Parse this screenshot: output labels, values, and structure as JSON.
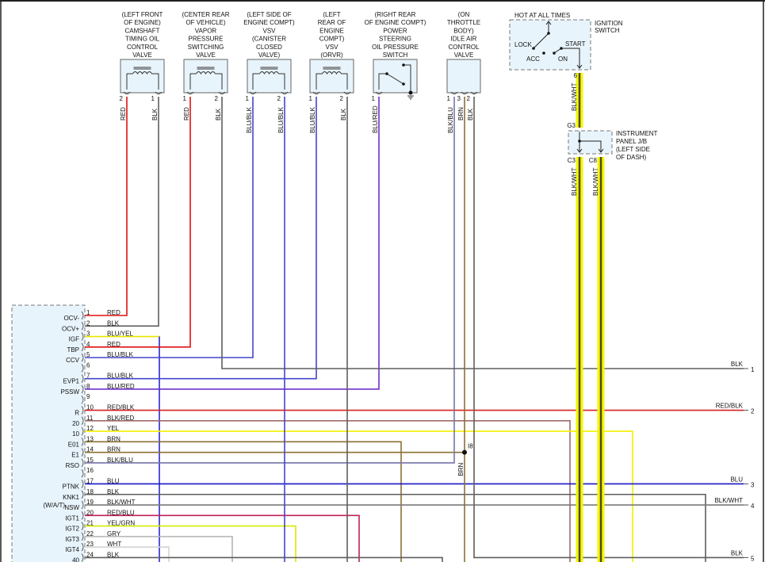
{
  "wire_colors": {
    "RED": "#e01010",
    "BLK": "#5e5e5e",
    "BLU/YEL": "#2a2ad0",
    "BLU/BLK": "#4444cc",
    "BLU/RED": "#7030c8",
    "RED/BLK": "#d82020",
    "BLK/RED": "#a06a6a",
    "YEL": "#f2f000",
    "BRN": "#8a7234",
    "BLK/BLU": "#7474a8",
    "BLU": "#1818c8",
    "BLK/WHT": "#7a7a7a",
    "RED/BLU": "#c0205a",
    "YEL/GRN": "#d6ea00",
    "GRY": "#b4b4b4",
    "WHT": "#d4d4d4",
    "ignition_feed": "#f5f500",
    "ignition_core": "#4a4a20"
  },
  "components": [
    {
      "label": [
        "(LEFT FRONT",
        "OF ENGINE)",
        "CAMSHAFT",
        "TIMING OIL",
        "CONTROL",
        "VALVE"
      ],
      "symbol": "coil",
      "pins": [
        {
          "num": "2",
          "wire": "RED"
        },
        {
          "num": "1",
          "wire": "BLK"
        }
      ]
    },
    {
      "label": [
        "(CENTER REAR",
        "OF VEHICLE)",
        "VAPOR",
        "PRESSURE",
        "SWITCHING",
        "VALVE"
      ],
      "symbol": "coil",
      "pins": [
        {
          "num": "1",
          "wire": "RED"
        },
        {
          "num": "2",
          "wire": "BLK"
        }
      ]
    },
    {
      "label": [
        "(LEFT SIDE OF",
        "ENGINE COMPT)",
        "VSV",
        "(CANISTER",
        "CLOSED",
        "VALVE)"
      ],
      "symbol": "coil",
      "pins": [
        {
          "num": "1",
          "wire": "BLU/BLK"
        },
        {
          "num": "2",
          "wire": "BLU/BLK"
        }
      ]
    },
    {
      "label": [
        "(LEFT",
        "REAR OF",
        "ENGINE",
        "COMPT)",
        "VSV",
        "(ORVR)"
      ],
      "symbol": "coil",
      "pins": [
        {
          "num": "1",
          "wire": "BLU/BLK"
        },
        {
          "num": "2",
          "wire": "BLK"
        }
      ]
    },
    {
      "label": [
        "(RIGHT REAR",
        "OF ENGINE COMPT)",
        "POWER",
        "STEERING",
        "OIL PRESSURE",
        "SWITCH"
      ],
      "symbol": "switch",
      "pins": [
        {
          "num": "1",
          "wire": "BLU/RED"
        }
      ]
    },
    {
      "label": [
        "(ON",
        "THROTTLE",
        "BODY)",
        "IDLE AIR",
        "CONTROL",
        "VALVE"
      ],
      "symbol": "none",
      "pins": [
        {
          "num": "1",
          "wire": "BLK/BLU"
        },
        {
          "num": "3",
          "wire": "BRN"
        },
        {
          "num": "2",
          "wire": "BLK"
        }
      ]
    }
  ],
  "ecm": {
    "note": "(W/A/T)",
    "pins": [
      {
        "num": "1",
        "name": "OCV-",
        "wire": "RED"
      },
      {
        "num": "2",
        "name": "OCV+",
        "wire": "BLK"
      },
      {
        "num": "3",
        "name": "IGF",
        "wire": "BLU/YEL"
      },
      {
        "num": "4",
        "name": "TBP",
        "wire": "RED"
      },
      {
        "num": "5",
        "name": "CCV",
        "wire": "BLU/BLK"
      },
      {
        "num": "6",
        "name": "",
        "wire": ""
      },
      {
        "num": "7",
        "name": "EVP1",
        "wire": "BLU/BLK"
      },
      {
        "num": "8",
        "name": "PSSW",
        "wire": "BLU/RED"
      },
      {
        "num": "9",
        "name": "",
        "wire": ""
      },
      {
        "num": "10",
        "name": "R",
        "wire": "RED/BLK"
      },
      {
        "num": "11",
        "name": "20",
        "wire": "BLK/RED"
      },
      {
        "num": "12",
        "name": "10",
        "wire": "YEL"
      },
      {
        "num": "13",
        "name": "E01",
        "wire": "BRN"
      },
      {
        "num": "14",
        "name": "E1",
        "wire": "BRN"
      },
      {
        "num": "15",
        "name": "RSO",
        "wire": "BLK/BLU"
      },
      {
        "num": "16",
        "name": "",
        "wire": ""
      },
      {
        "num": "17",
        "name": "PTNK",
        "wire": "BLU"
      },
      {
        "num": "18",
        "name": "KNK1",
        "wire": "BLK"
      },
      {
        "num": "19",
        "name": "NSW",
        "wire": "BLK/WHT"
      },
      {
        "num": "20",
        "name": "IGT1",
        "wire": "RED/BLU"
      },
      {
        "num": "21",
        "name": "IGT2",
        "wire": "YEL/GRN"
      },
      {
        "num": "22",
        "name": "IGT3",
        "wire": "GRY"
      },
      {
        "num": "23",
        "name": "IGT4",
        "wire": "WHT"
      },
      {
        "num": "24",
        "name": "40",
        "wire": "BLK"
      }
    ]
  },
  "right_connectors": [
    {
      "num": "1",
      "wire": "BLK"
    },
    {
      "num": "2",
      "wire": "RED/BLK"
    },
    {
      "num": "3",
      "wire": "BLU"
    },
    {
      "num": "4",
      "wire": "BLK/WHT"
    },
    {
      "num": "5",
      "wire": "BLK"
    }
  ],
  "junction": {
    "name": "I8",
    "wire": "BRN"
  },
  "ignition_switch": {
    "title": "HOT AT ALL TIMES",
    "label": [
      "IGNITION",
      "SWITCH"
    ],
    "positions": {
      "lock": "LOCK",
      "acc": "ACC",
      "on": "ON",
      "start": "START"
    },
    "pin": "6",
    "wire": "BLK/WHT"
  },
  "junction_block": {
    "label": [
      "INSTRUMENT",
      "PANEL J/B",
      "(LEFT SIDE",
      "OF DASH)"
    ],
    "in_pin": "G3",
    "out_pins": [
      {
        "num": "C3",
        "wire": "BLK/WHT"
      },
      {
        "num": "C8",
        "wire": "BLK/WHT"
      }
    ]
  }
}
